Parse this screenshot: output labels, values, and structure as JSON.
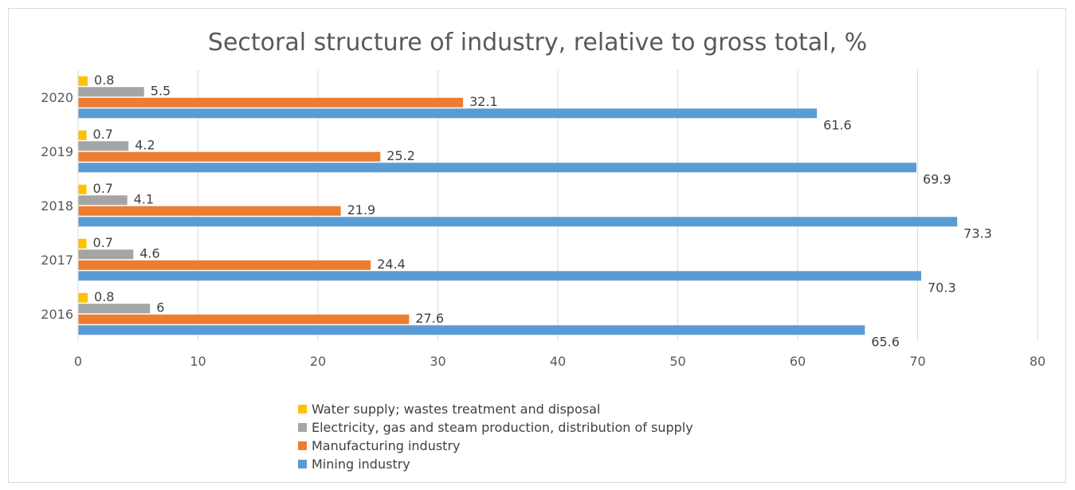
{
  "chart_data": {
    "type": "bar",
    "orientation": "horizontal",
    "title": "Sectoral structure of industry, relative to gross total, %",
    "categories": [
      "2016",
      "2017",
      "2018",
      "2019",
      "2020"
    ],
    "xlim": [
      0,
      80
    ],
    "xticks": [
      "0",
      "10",
      "20",
      "30",
      "40",
      "50",
      "60",
      "70",
      "80"
    ],
    "grid": true,
    "legend_position": "bottom",
    "series": [
      {
        "name": "Water supply; wastes treatment and disposal",
        "color": "#ffc000",
        "values": [
          0.8,
          0.7,
          0.7,
          0.7,
          0.8
        ]
      },
      {
        "name": "Electricity, gas and steam production, distribution of supply",
        "color": "#a5a5a5",
        "values": [
          6,
          4.6,
          4.1,
          4.2,
          5.5
        ]
      },
      {
        "name": "Manufacturing industry",
        "color": "#ed7d31",
        "values": [
          27.6,
          24.4,
          21.9,
          25.2,
          32.1
        ]
      },
      {
        "name": "Mining industry",
        "color": "#5b9bd5",
        "values": [
          65.6,
          70.3,
          73.3,
          69.9,
          61.6
        ]
      }
    ]
  }
}
